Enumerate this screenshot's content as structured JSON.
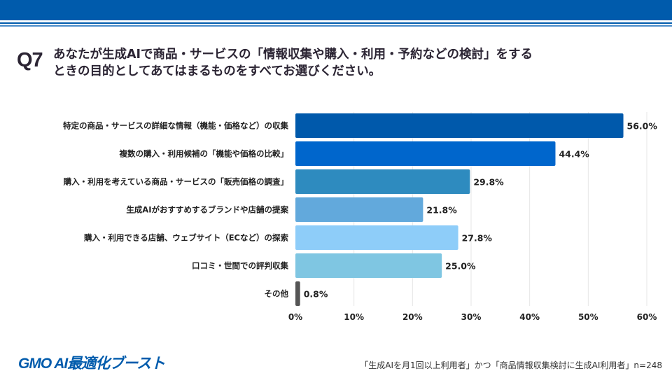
{
  "header": {
    "q_label": "Q7",
    "title_line1": "あなたが生成AIで商品・サービスの「情報収集や購入・利用・予約などの検討」をする",
    "title_line2": "ときの目的としてあてはまるものをすべてお選びください。"
  },
  "chart_data": {
    "type": "bar",
    "orientation": "horizontal",
    "categories": [
      "特定の商品・サービスの詳細な情報（機能・価格など）の収集",
      "複数の購入・利用候補の「機能や価格の比較」",
      "購入・利用を考えている商品・サービスの「販売価格の調査」",
      "生成AIがおすすめするブランドや店舗の提案",
      "購入・利用できる店舗、ウェブサイト（ECなど）の探索",
      "口コミ・世間での評判収集",
      "その他"
    ],
    "values": [
      56.0,
      44.4,
      29.8,
      21.8,
      27.8,
      25.0,
      0.8
    ],
    "value_labels": [
      "56.0%",
      "44.4%",
      "29.8%",
      "21.8%",
      "27.8%",
      "25.0%",
      "0.8%"
    ],
    "colors": [
      "#0059AB",
      "#0066CC",
      "#2E8BBF",
      "#62A9DC",
      "#8ECDF9",
      "#7FC6E2",
      "#555555"
    ],
    "xlim": [
      0,
      60
    ],
    "xticks": [
      "0%",
      "10%",
      "20%",
      "30%",
      "40%",
      "50%",
      "60%"
    ],
    "grid": true
  },
  "footer": {
    "logo": "GMO AI最適化ブースト",
    "note": "「生成AIを月1回以上利用者」かつ「商品情報収集検討に生成AI利用者」n=248"
  }
}
